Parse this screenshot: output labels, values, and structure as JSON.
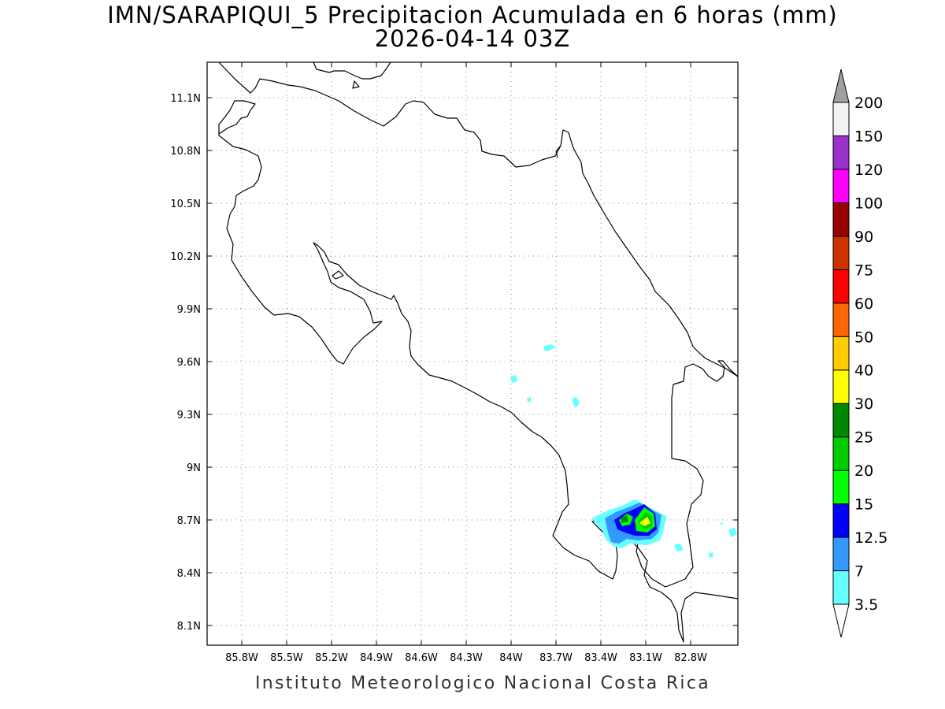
{
  "title": {
    "line1": "IMN/SARAPIQUI_5 Precipitacion Acumulada en 6 horas (mm)",
    "line2": "2026-04-14 03Z"
  },
  "credit": "Instituto Meteorologico Nacional Costa Rica",
  "map": {
    "lon_ticks": [
      "85.8W",
      "85.5W",
      "85.2W",
      "84.9W",
      "84.6W",
      "84.3W",
      "84W",
      "83.7W",
      "83.4W",
      "83.1W",
      "82.8W"
    ],
    "lat_ticks": [
      "11.1N",
      "10.8N",
      "10.5N",
      "10.2N",
      "9.9N",
      "9.6N",
      "9.3N",
      "9N",
      "8.7N",
      "8.4N",
      "8.1N"
    ],
    "grid": true
  },
  "colorbar": {
    "labels": [
      "3.5",
      "7",
      "12.5",
      "15",
      "20",
      "25",
      "30",
      "40",
      "50",
      "60",
      "75",
      "90",
      "100",
      "120",
      "150",
      "200"
    ],
    "colors": [
      "#ffffff",
      "#66ffff",
      "#3399ff",
      "#0000ff",
      "#00ff00",
      "#00cc00",
      "#008800",
      "#ffff00",
      "#ffcc00",
      "#ff6600",
      "#ff0000",
      "#cc3300",
      "#990000",
      "#ff00ff",
      "#9933cc",
      "#f2f2f2",
      "#a0a0a0"
    ]
  }
}
